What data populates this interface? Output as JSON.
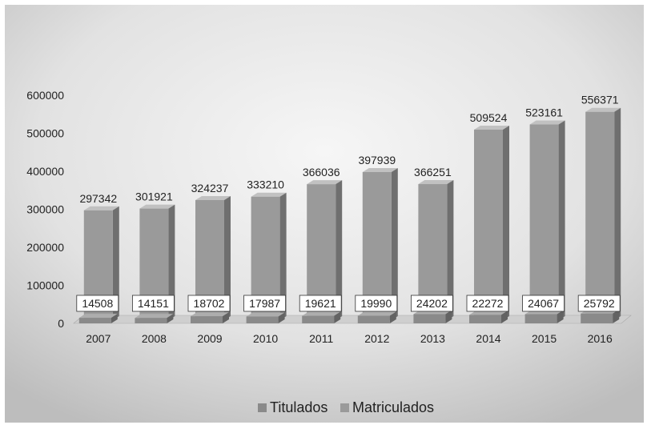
{
  "chart_data": {
    "type": "bar",
    "style": "3d-clustered-column",
    "categories": [
      "2007",
      "2008",
      "2009",
      "2010",
      "2011",
      "2012",
      "2013",
      "2014",
      "2015",
      "2016"
    ],
    "series": [
      {
        "name": "Titulados",
        "values": [
          14508,
          14151,
          18702,
          17987,
          19621,
          19990,
          24202,
          22272,
          24067,
          25792
        ]
      },
      {
        "name": "Matriculados",
        "values": [
          297342,
          301921,
          324237,
          333210,
          366036,
          397939,
          366251,
          509524,
          523161,
          556371
        ]
      }
    ],
    "title": "",
    "xlabel": "",
    "ylabel": "",
    "ylim": [
      0,
      600000
    ],
    "yticks": [
      "0",
      "100000",
      "200000",
      "300000",
      "400000",
      "500000",
      "600000"
    ],
    "grid": false,
    "legend": "bottom",
    "data_labels": true,
    "colors": {
      "background_center": "#f4f4f4",
      "background_edge": "#c9c9c9",
      "titulados": "#8a8a8a",
      "matriculados": "#9a9a9a",
      "floor": "#7a7a7a"
    }
  }
}
